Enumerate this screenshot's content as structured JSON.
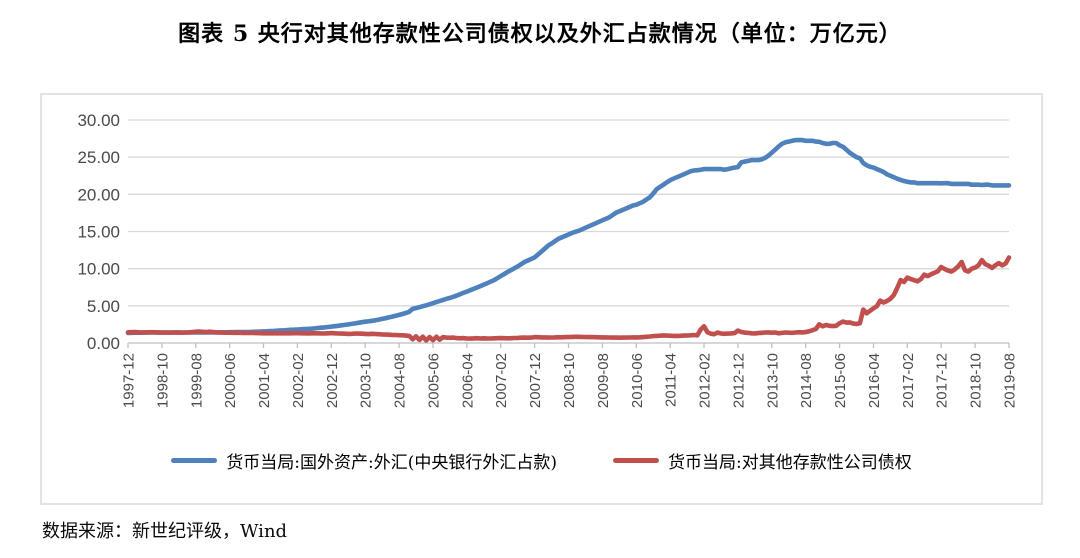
{
  "page": {
    "title": "图表 5  央行对其他存款性公司债权以及外汇占款情况（单位：万亿元）",
    "source": "数据来源：新世纪评级，Wind"
  },
  "colors": {
    "series_fx_blue": "#4F81BD",
    "series_claims_red": "#C0504D",
    "gridline": "#d9d9d9",
    "axis": "#bfbfbf",
    "tick_text": "#4a4a4a"
  },
  "chart_data": {
    "type": "line",
    "title": "图表 5  央行对其他存款性公司债权以及外汇占款情况（单位：万亿元）",
    "unit": "万亿元",
    "x_frequency": "monthly",
    "x_start": "1997-12",
    "x_end": "2019-08",
    "grid": "horizontal",
    "legend_position": "bottom",
    "ylim": [
      0,
      30
    ],
    "y_tick_labels": [
      "30.00",
      "25.00",
      "20.00",
      "15.00",
      "10.00",
      "5.00",
      "0.00"
    ],
    "x_tick_labels": [
      "1997-12",
      "1998-10",
      "1999-08",
      "2000-06",
      "2001-04",
      "2002-02",
      "2002-12",
      "2003-10",
      "2004-08",
      "2005-06",
      "2006-04",
      "2007-02",
      "2007-12",
      "2008-10",
      "2009-08",
      "2010-06",
      "2011-04",
      "2012-02",
      "2012-12",
      "2013-10",
      "2014-08",
      "2015-06",
      "2016-04",
      "2017-02",
      "2017-12",
      "2018-10",
      "2019-08"
    ],
    "x_tick_interval_months": 10,
    "series": [
      {
        "name": "货币当局:国外资产:外汇(中央银行外汇占款)",
        "color": "#4F81BD",
        "values": [
          1.36,
          1.37,
          1.38,
          1.39,
          1.39,
          1.4,
          1.4,
          1.41,
          1.41,
          1.4,
          1.4,
          1.41,
          1.41,
          1.41,
          1.42,
          1.42,
          1.41,
          1.41,
          1.42,
          1.42,
          1.43,
          1.42,
          1.41,
          1.41,
          1.41,
          1.42,
          1.43,
          1.43,
          1.44,
          1.44,
          1.45,
          1.45,
          1.46,
          1.46,
          1.47,
          1.47,
          1.48,
          1.5,
          1.52,
          1.54,
          1.56,
          1.58,
          1.61,
          1.63,
          1.66,
          1.69,
          1.71,
          1.74,
          1.77,
          1.79,
          1.82,
          1.84,
          1.87,
          1.9,
          1.93,
          1.97,
          2.02,
          2.06,
          2.1,
          2.15,
          2.21,
          2.26,
          2.32,
          2.38,
          2.44,
          2.5,
          2.57,
          2.64,
          2.72,
          2.8,
          2.86,
          2.92,
          2.98,
          3.06,
          3.15,
          3.24,
          3.34,
          3.44,
          3.55,
          3.66,
          3.78,
          3.9,
          4.03,
          4.2,
          4.59,
          4.7,
          4.82,
          4.95,
          5.07,
          5.2,
          5.35,
          5.5,
          5.65,
          5.8,
          5.95,
          6.07,
          6.21,
          6.38,
          6.56,
          6.75,
          6.92,
          7.1,
          7.28,
          7.46,
          7.65,
          7.85,
          8.05,
          8.25,
          8.45,
          8.72,
          9.0,
          9.27,
          9.55,
          9.8,
          10.05,
          10.3,
          10.6,
          10.9,
          11.1,
          11.3,
          11.52,
          11.9,
          12.3,
          12.7,
          13.1,
          13.4,
          13.7,
          14.0,
          14.2,
          14.4,
          14.6,
          14.8,
          14.96,
          15.1,
          15.3,
          15.5,
          15.7,
          15.9,
          16.1,
          16.3,
          16.5,
          16.7,
          16.9,
          17.2,
          17.51,
          17.7,
          17.9,
          18.1,
          18.3,
          18.5,
          18.6,
          18.8,
          19.0,
          19.3,
          19.6,
          20.1,
          20.68,
          21.0,
          21.3,
          21.6,
          21.9,
          22.1,
          22.3,
          22.5,
          22.7,
          22.9,
          23.1,
          23.2,
          23.24,
          23.3,
          23.4,
          23.4,
          23.4,
          23.4,
          23.4,
          23.4,
          23.3,
          23.4,
          23.5,
          23.6,
          23.67,
          24.3,
          24.4,
          24.5,
          24.6,
          24.6,
          24.6,
          24.7,
          24.9,
          25.2,
          25.6,
          26.0,
          26.43,
          26.8,
          27.0,
          27.1,
          27.2,
          27.3,
          27.3,
          27.3,
          27.2,
          27.2,
          27.2,
          27.1,
          27.07,
          26.9,
          26.8,
          26.8,
          26.9,
          26.9,
          26.6,
          26.4,
          26.0,
          25.6,
          25.3,
          25.0,
          24.85,
          24.2,
          23.9,
          23.7,
          23.6,
          23.4,
          23.2,
          23.0,
          22.7,
          22.5,
          22.3,
          22.1,
          21.94,
          21.8,
          21.7,
          21.6,
          21.6,
          21.5,
          21.5,
          21.5,
          21.5,
          21.5,
          21.5,
          21.5,
          21.48,
          21.5,
          21.5,
          21.4,
          21.4,
          21.4,
          21.4,
          21.4,
          21.4,
          21.3,
          21.3,
          21.3,
          21.26,
          21.3,
          21.3,
          21.2,
          21.2,
          21.2,
          21.2,
          21.2,
          21.2
        ]
      },
      {
        "name": "货币当局:对其他存款性公司债权",
        "color": "#C0504D",
        "values": [
          1.44,
          1.45,
          1.46,
          1.44,
          1.42,
          1.43,
          1.44,
          1.45,
          1.44,
          1.42,
          1.41,
          1.4,
          1.39,
          1.4,
          1.41,
          1.4,
          1.39,
          1.41,
          1.43,
          1.46,
          1.52,
          1.55,
          1.5,
          1.47,
          1.52,
          1.48,
          1.44,
          1.42,
          1.4,
          1.39,
          1.38,
          1.37,
          1.38,
          1.37,
          1.36,
          1.35,
          1.35,
          1.34,
          1.33,
          1.32,
          1.31,
          1.32,
          1.31,
          1.3,
          1.31,
          1.3,
          1.31,
          1.3,
          1.31,
          1.32,
          1.33,
          1.31,
          1.3,
          1.29,
          1.3,
          1.31,
          1.3,
          1.29,
          1.28,
          1.3,
          1.33,
          1.3,
          1.28,
          1.26,
          1.25,
          1.23,
          1.24,
          1.26,
          1.27,
          1.25,
          1.22,
          1.2,
          1.24,
          1.21,
          1.18,
          1.15,
          1.13,
          1.11,
          1.09,
          1.07,
          1.05,
          1.03,
          1.0,
          0.95,
          0.5,
          0.9,
          0.4,
          0.85,
          0.35,
          0.8,
          0.38,
          0.85,
          0.45,
          0.8,
          0.72,
          0.7,
          0.73,
          0.66,
          0.63,
          0.66,
          0.61,
          0.59,
          0.62,
          0.64,
          0.61,
          0.63,
          0.6,
          0.61,
          0.63,
          0.64,
          0.66,
          0.65,
          0.63,
          0.65,
          0.67,
          0.69,
          0.71,
          0.73,
          0.71,
          0.73,
          0.79,
          0.78,
          0.76,
          0.75,
          0.73,
          0.74,
          0.76,
          0.78,
          0.77,
          0.79,
          0.8,
          0.82,
          0.84,
          0.83,
          0.82,
          0.81,
          0.8,
          0.79,
          0.78,
          0.77,
          0.76,
          0.75,
          0.74,
          0.73,
          0.72,
          0.71,
          0.72,
          0.73,
          0.74,
          0.75,
          0.76,
          0.77,
          0.79,
          0.83,
          0.88,
          0.93,
          0.95,
          0.98,
          1.02,
          1.0,
          0.98,
          0.96,
          0.95,
          0.97,
          0.99,
          1.01,
          1.03,
          1.08,
          1.02,
          1.8,
          2.25,
          1.45,
          1.25,
          1.18,
          1.4,
          1.28,
          1.24,
          1.27,
          1.29,
          1.33,
          1.67,
          1.48,
          1.4,
          1.36,
          1.31,
          1.29,
          1.33,
          1.37,
          1.41,
          1.43,
          1.39,
          1.41,
          1.31,
          1.36,
          1.41,
          1.39,
          1.37,
          1.41,
          1.45,
          1.43,
          1.46,
          1.58,
          1.72,
          1.88,
          2.5,
          2.25,
          2.42,
          2.32,
          2.27,
          2.31,
          2.66,
          2.88,
          2.74,
          2.77,
          2.62,
          2.55,
          2.66,
          4.5,
          4.0,
          4.35,
          4.65,
          4.95,
          5.7,
          5.45,
          5.65,
          5.95,
          6.45,
          7.4,
          8.47,
          8.2,
          8.8,
          8.6,
          8.45,
          8.3,
          8.59,
          9.2,
          9.0,
          9.25,
          9.45,
          9.65,
          10.22,
          9.95,
          9.75,
          9.6,
          9.9,
          10.3,
          10.9,
          9.8,
          9.6,
          10.0,
          10.15,
          10.45,
          11.15,
          10.6,
          10.4,
          10.1,
          10.45,
          10.75,
          10.45,
          10.7,
          11.5
        ]
      }
    ]
  }
}
